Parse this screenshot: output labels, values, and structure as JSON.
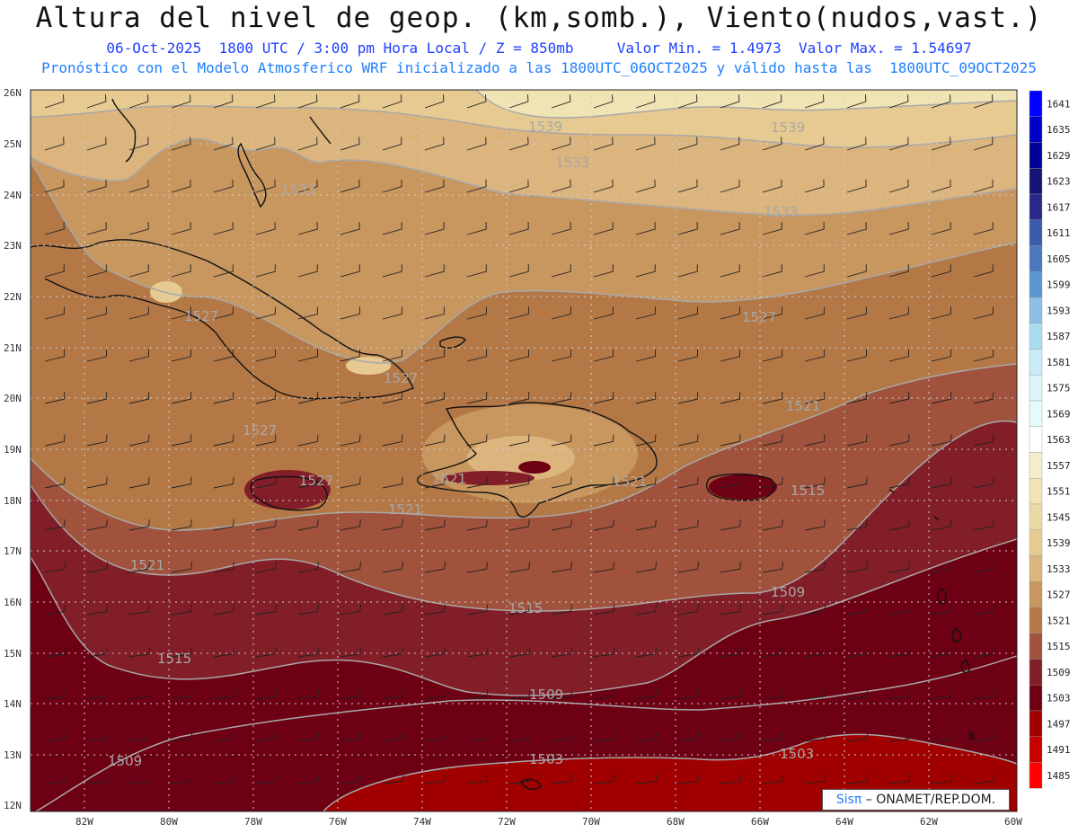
{
  "header": {
    "title": "Altura del nivel de geop. (km,somb.), Viento(nudos,vast.)",
    "date": "06-Oct-2025",
    "time": "1800 UTC / 3:00 pm Hora Local / Z = 850mb",
    "min": "Valor Min. = 1.4973",
    "max": "Valor Max. = 1.54697",
    "model_line": "Pronóstico con el Modelo Atmosferico WRF inicializado a las 1800UTC_06OCT2025 y válido hasta las  1800UTC_09OCT2025"
  },
  "axes": {
    "lat_labels": [
      "26N",
      "25N",
      "24N",
      "23N",
      "22N",
      "21N",
      "20N",
      "19N",
      "18N",
      "17N",
      "16N",
      "15N",
      "14N",
      "13N",
      "12N"
    ],
    "lon_labels": [
      "82W",
      "80W",
      "78W",
      "76W",
      "74W",
      "72W",
      "70W",
      "68W",
      "66W",
      "64W",
      "62W",
      "60W"
    ]
  },
  "colorbar": {
    "levels": [
      "1641",
      "1635",
      "1629",
      "1623",
      "1617",
      "1611",
      "1605",
      "1599",
      "1593",
      "1587",
      "1581",
      "1575",
      "1569",
      "1563",
      "1557",
      "1551",
      "1545",
      "1539",
      "1533",
      "1527",
      "1521",
      "1515",
      "1509",
      "1503",
      "1497",
      "1491",
      "1485"
    ],
    "colors": [
      "#0000ff",
      "#0000c8",
      "#000096",
      "#141478",
      "#28288c",
      "#3c5aaa",
      "#4a78be",
      "#5a96d2",
      "#8cbee6",
      "#aadcf0",
      "#c8ebf5",
      "#dcf5fa",
      "#e6fafa",
      "#ffffff",
      "#f5ecc8",
      "#f0e3b4",
      "#ebd9a5",
      "#e6ca91",
      "#dcb47d",
      "#c8965f",
      "#b47846",
      "#a0523c",
      "#821e28",
      "#6e0014",
      "#a00000",
      "#c80000",
      "#ff0000"
    ]
  },
  "contour_labels": [
    "1539",
    "1539",
    "1533",
    "1533",
    "1533",
    "1527",
    "1527",
    "1527",
    "1527",
    "1527",
    "1521",
    "1521",
    "1521",
    "1521",
    "1521",
    "1515",
    "1515",
    "1515",
    "1509",
    "1509",
    "1509",
    "1503",
    "1503",
    "1521",
    "1527"
  ],
  "credit": {
    "logo": "Sisπ",
    "text": " – ONAMET/REP.DOM."
  }
}
